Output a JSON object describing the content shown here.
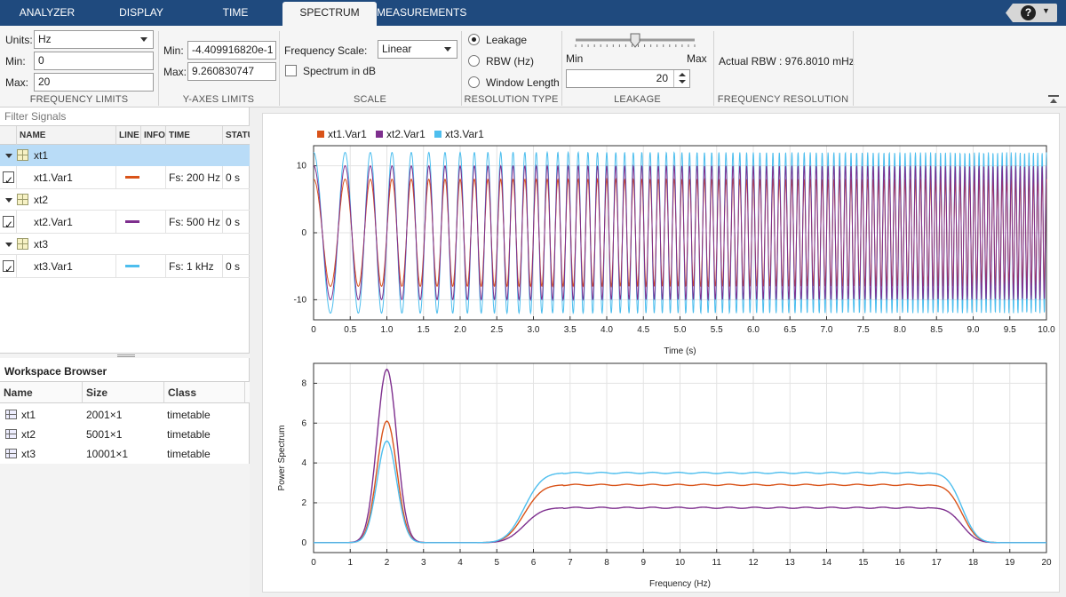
{
  "tabs": [
    {
      "label": "ANALYZER",
      "active": false
    },
    {
      "label": "DISPLAY",
      "active": false
    },
    {
      "label": "TIME",
      "active": false
    },
    {
      "label": "SPECTRUM",
      "active": true
    },
    {
      "label": "MEASUREMENTS",
      "active": false
    }
  ],
  "help": {
    "icon": "help-icon",
    "symbol": "?"
  },
  "ribbon": {
    "frequency_limits": {
      "title": "FREQUENCY LIMITS",
      "units_label": "Units:",
      "units_value": "Hz",
      "min_label": "Min:",
      "min_value": "0",
      "max_label": "Max:",
      "max_value": "20"
    },
    "y_axes_limits": {
      "title": "Y-AXES LIMITS",
      "min_label": "Min:",
      "min_value": "-4.409916820e-1",
      "max_label": "Max:",
      "max_value": "9.260830747"
    },
    "scale": {
      "title": "SCALE",
      "freq_scale_label": "Frequency Scale:",
      "freq_scale_value": "Linear",
      "spectrum_db_label": "Spectrum in dB",
      "spectrum_db_checked": false
    },
    "resolution_type": {
      "title": "RESOLUTION TYPE",
      "options": [
        "Leakage",
        "RBW (Hz)",
        "Window Length"
      ],
      "selected": "Leakage"
    },
    "leakage": {
      "title": "LEAKAGE",
      "min_label": "Min",
      "max_label": "Max",
      "value": "20",
      "slider_fraction": 0.5
    },
    "frequency_resolution": {
      "title": "FREQUENCY RESOLUTION",
      "rbw_text": "Actual RBW : 976.8010 mHz"
    }
  },
  "signals": {
    "filter_placeholder": "Filter Signals",
    "columns": [
      "NAME",
      "LINE",
      "INFO",
      "TIME",
      "STATUS"
    ],
    "groups": [
      {
        "name": "xt1",
        "signal": "xt1.Var1",
        "color": "#d95319",
        "time": "Fs: 200 Hz",
        "status": "0 s",
        "selected": true
      },
      {
        "name": "xt2",
        "signal": "xt2.Var1",
        "color": "#7e2f8e",
        "time": "Fs: 500 Hz",
        "status": "0 s",
        "selected": false
      },
      {
        "name": "xt3",
        "signal": "xt3.Var1",
        "color": "#4dbeee",
        "time": "Fs: 1 kHz",
        "status": "0 s",
        "selected": false
      }
    ]
  },
  "workspace": {
    "title": "Workspace Browser",
    "columns": [
      "Name",
      "Size",
      "Class"
    ],
    "rows": [
      {
        "name": "xt1",
        "size": "2001×1",
        "class": "timetable"
      },
      {
        "name": "xt2",
        "size": "5001×1",
        "class": "timetable"
      },
      {
        "name": "xt3",
        "size": "10001×1",
        "class": "timetable"
      }
    ]
  },
  "chart_data": [
    {
      "type": "line",
      "xlabel": "Time (s)",
      "ylabel": "",
      "xlim": [
        0,
        10
      ],
      "ylim": [
        -13,
        13
      ],
      "xticks": [
        "0",
        "0.5",
        "1.0",
        "1.5",
        "2.0",
        "2.5",
        "3.0",
        "3.5",
        "4.0",
        "4.5",
        "5.0",
        "5.5",
        "6.0",
        "6.5",
        "7.0",
        "7.5",
        "8.0",
        "8.5",
        "9.0",
        "9.5",
        "10.0"
      ],
      "yticks": [
        "10",
        "0",
        "-10"
      ],
      "grid": true,
      "legend_position": "top-left",
      "series": [
        {
          "name": "xt1.Var1",
          "color": "#d95319",
          "amplitude": 8,
          "chirp_start_hz": 2,
          "chirp_end_hz": 17
        },
        {
          "name": "xt2.Var1",
          "color": "#7e2f8e",
          "amplitude": 10,
          "chirp_start_hz": 2,
          "chirp_end_hz": 17
        },
        {
          "name": "xt3.Var1",
          "color": "#4dbeee",
          "amplitude": 12,
          "chirp_start_hz": 2,
          "chirp_end_hz": 17
        }
      ]
    },
    {
      "type": "line",
      "xlabel": "Frequency (Hz)",
      "ylabel": "Power Spectrum",
      "xlim": [
        0,
        20
      ],
      "ylim": [
        -0.5,
        9
      ],
      "xticks": [
        "0",
        "1",
        "2",
        "3",
        "4",
        "5",
        "6",
        "7",
        "8",
        "9",
        "10",
        "11",
        "12",
        "13",
        "14",
        "15",
        "16",
        "17",
        "18",
        "19",
        "20"
      ],
      "yticks": [
        "0",
        "2",
        "4",
        "6",
        "8"
      ],
      "grid": true,
      "series": [
        {
          "name": "xt1.Var1",
          "color": "#d95319",
          "peak_freq": 2,
          "peak_value": 6.1,
          "plateau_start": 6.8,
          "plateau_end": 16.8,
          "plateau_value": 2.9
        },
        {
          "name": "xt2.Var1",
          "color": "#7e2f8e",
          "peak_freq": 2,
          "peak_value": 8.7,
          "plateau_start": 6.8,
          "plateau_end": 16.8,
          "plateau_value": 1.75
        },
        {
          "name": "xt3.Var1",
          "color": "#4dbeee",
          "peak_freq": 2,
          "peak_value": 5.1,
          "plateau_start": 6.8,
          "plateau_end": 16.8,
          "plateau_value": 3.5
        }
      ]
    }
  ]
}
